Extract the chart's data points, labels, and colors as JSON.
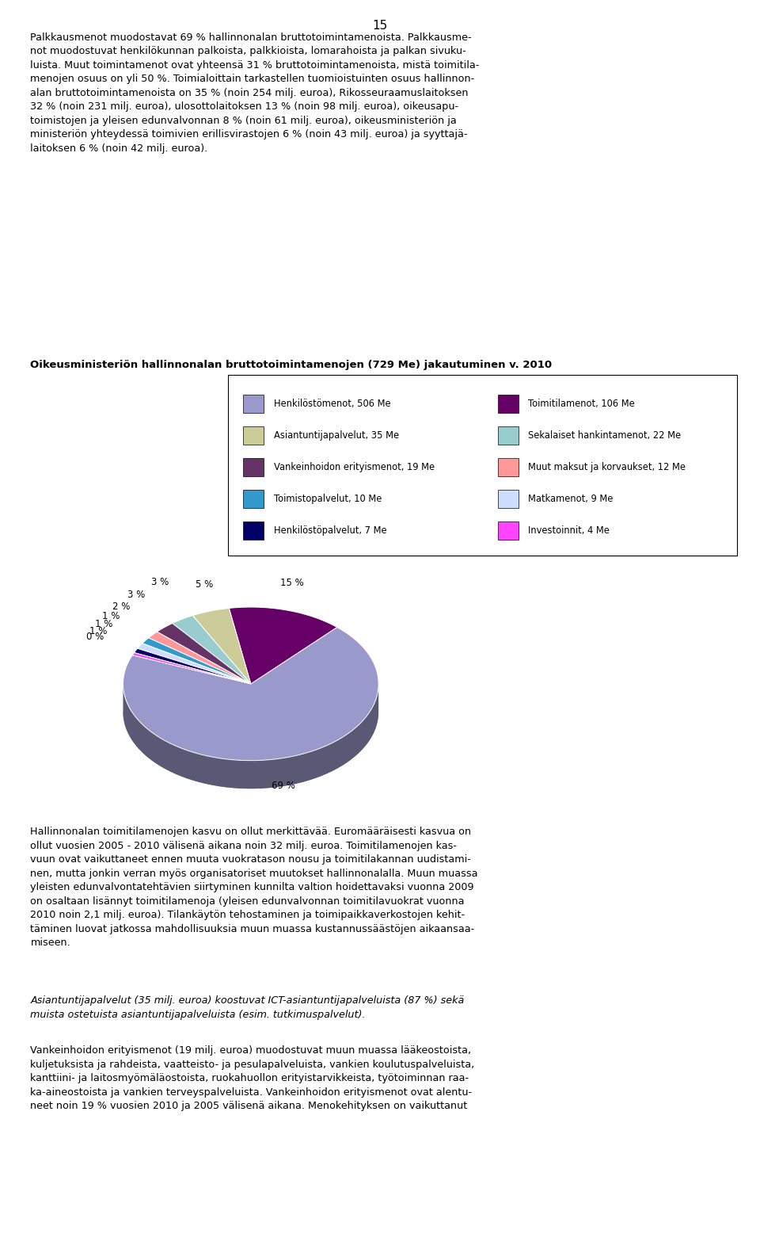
{
  "title": "Oikeusministeriön hallinnonalan bruttotoimintamenojen (729 Me) jakautuminen v. 2010",
  "slices": [
    {
      "label": "Henkilöstömenot, 506 Me",
      "value": 506,
      "pct": "69 %",
      "color": "#9999CC"
    },
    {
      "label": "Toimitilamenot, 106 Me",
      "value": 106,
      "pct": "15 %",
      "color": "#660066"
    },
    {
      "label": "Asiantuntijapalvelut, 35 Me",
      "value": 35,
      "pct": "5 %",
      "color": "#CCCC99"
    },
    {
      "label": "Sekalaiset hankintamenot, 22 Me",
      "value": 22,
      "pct": "3 %",
      "color": "#99CCCC"
    },
    {
      "label": "Vankeinhoidon erityismenot, 19 Me",
      "value": 19,
      "pct": "3 %",
      "color": "#663366"
    },
    {
      "label": "Muut maksut ja korvaukset, 12 Me",
      "value": 12,
      "pct": "2 %",
      "color": "#FF9999"
    },
    {
      "label": "Toimistopalvelut, 10 Me",
      "value": 10,
      "pct": "1 %",
      "color": "#3399CC"
    },
    {
      "label": "Matkamenot, 9 Me",
      "value": 9,
      "pct": "1 %",
      "color": "#CCDDFF"
    },
    {
      "label": "Henkilöstöpalvelut, 7 Me",
      "value": 7,
      "pct": "1 %",
      "color": "#000066"
    },
    {
      "label": "Investoinnit, 4 Me",
      "value": 4,
      "pct": "0 %",
      "color": "#FF44FF"
    }
  ],
  "legend_left": [
    {
      "label": "Henkilöstömenot, 506 Me",
      "color": "#9999CC"
    },
    {
      "label": "Asiantuntijapalvelut, 35 Me",
      "color": "#CCCC99"
    },
    {
      "label": "Vankeinhoidon erityismenot, 19 Me",
      "color": "#663366"
    },
    {
      "label": "Toimistopalvelut, 10 Me",
      "color": "#3399CC"
    },
    {
      "label": "Henkilöstöpalvelut, 7 Me",
      "color": "#000066"
    }
  ],
  "legend_right": [
    {
      "label": "Toimitilamenot, 106 Me",
      "color": "#660066"
    },
    {
      "label": "Sekalaiset hankintamenot, 22 Me",
      "color": "#99CCCC"
    },
    {
      "label": "Muut maksut ja korvaukset, 12 Me",
      "color": "#FF9999"
    },
    {
      "label": "Matkamenot, 9 Me",
      "color": "#CCDDFF"
    },
    {
      "label": "Investoinnit, 4 Me",
      "color": "#FF44FF"
    }
  ],
  "page_number": "15",
  "top_text": "Palkkausmenot muodostavat 69 % hallinnonalan bruttotoimintamenoista. Palkkausme-\nnot muodostuvat henkilökunnan palkoista, palkkioista, lomarahoista ja palkan sivuku-\nluista. Muut toimintamenot ovat yhteensä 31 % bruttotoimintamenoista, mistä toimitila-\nmenojen osuus on yli 50 %. Toimialoittain tarkastellen tuomioistuinten osuus hallinnon-\nalan bruttotoimintamenoista on 35 % (noin 254 milj. euroa), Rikosseuraamuslaitoksen\n32 % (noin 231 milj. euroa), ulosottolaitoksen 13 % (noin 98 milj. euroa), oikeusapu-\ntoimistojen ja yleisen edunvalvonnan 8 % (noin 61 milj. euroa), oikeusministeriön ja\nministeriön yhteydessä toimivien erillisvirastojen 6 % (noin 43 milj. euroa) ja syyttajä-\nlaitoksen 6 % (noin 42 milj. euroa).",
  "bottom_text1": "Hallinnonalan toimitilamenojen kasvu on ollut merkittävää. Euromääräisesti kasvua on\nollut vuosien 2005 - 2010 välisenä aikana noin 32 milj. euroa. Toimitilamenojen kas-\nvuun ovat vaikuttaneet ennen muuta vuokratason nousu ja toimitilakannan uudistami-\nnen, mutta jonkin verran myös organisatoriset muutokset hallinnonalalla. Muun muassa\nyleisten edunvalvontatehtävien siirtyminen kunnilta valtion hoidettavaksi vuonna 2009\non osaltaan lisännyt toimitilamenoja (yleisen edunvalvonnan toimitilavuokrat vuonna\n2010 noin 2,1 milj. euroa). Tilankäytön tehostaminen ja toimipaikkaverkostojen kehit-\ntäminen luovat jatkossa mahdollisuuksia muun muassa kustannussäästöjen aikaansaa-\nmiseen.",
  "bottom_text2": "Asiantuntijapalvelut (35 milj. euroa) koostuvat ICT-asiantuntijapalveluista (87 %) sekä\nmuista ostetuista asiantuntijapalveluista (esim. tutkimuspalvelut).",
  "bottom_text3": "Vankeinhoidon erityismenot (19 milj. euroa) muodostuvat muun muassa lääkeostoista,\nkuljetuksista ja rahdeista, vaatteisto- ja pesulapalveluista, vankien koulutuspalveluista,\nkanttiini- ja laitosmyömäläostoista, ruokahuollon erityistarvikkeista, työtoiminnan raa-\nka-aineostoista ja vankien terveyspalveluista. Vankeinhoidon erityismenot ovat alentu-\nneet noin 19 % vuosien 2010 ja 2005 välisenä aikana. Menokehityksen on vaikuttanut"
}
